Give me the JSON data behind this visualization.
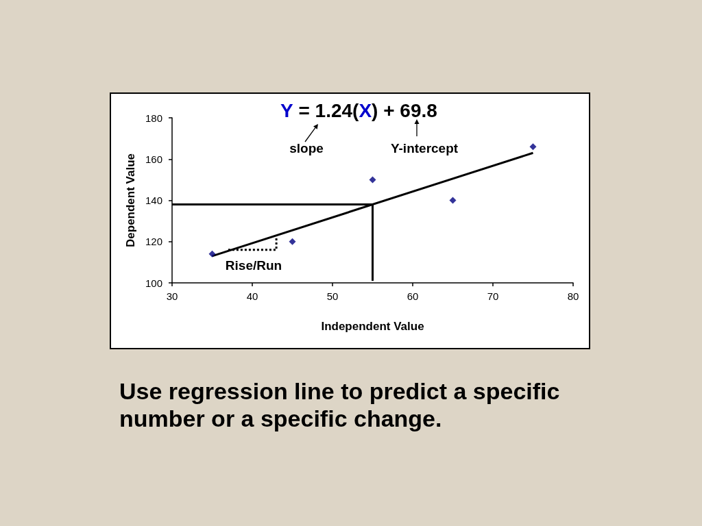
{
  "chart_data": {
    "type": "scatter",
    "title": "Y = 1.24(X) + 69.8",
    "xlabel": "Independent Value",
    "ylabel": "Dependent Value",
    "xlim": [
      30,
      80
    ],
    "xticks": [
      30,
      40,
      50,
      60,
      70,
      80
    ],
    "ylim": [
      100,
      180
    ],
    "yticks": [
      100,
      120,
      140,
      160,
      180
    ],
    "grid": false,
    "annotations": [
      "slope",
      "Y-intercept",
      "Rise/Run",
      "Use regression line to predict a specific number or a specific change."
    ],
    "series": [
      {
        "color": "#000080",
        "marker": "diamond",
        "x": [
          35,
          45,
          55,
          65,
          75
        ],
        "values": [
          114,
          120,
          150,
          140,
          166
        ]
      },
      {
        "type": "line",
        "color": "#000000",
        "x": [
          35,
          75
        ],
        "values": [
          113,
          163
        ]
      },
      {
        "type": "line",
        "color": "#000000",
        "x": [
          30,
          55
        ],
        "values": [
          138,
          138
        ]
      },
      {
        "type": "line",
        "color": "#000000",
        "x": [
          55,
          55
        ],
        "values": [
          101,
          138
        ]
      },
      {
        "type": "line",
        "color": "#000000",
        "line_style": "dotted",
        "x": [
          37,
          43,
          43
        ],
        "values": [
          116,
          116,
          122
        ]
      }
    ]
  }
}
